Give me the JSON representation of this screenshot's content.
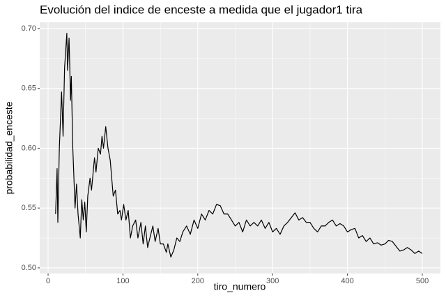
{
  "chart_data": {
    "type": "line",
    "title": "Evolución del indice de enceste a medida que el jugador1 tira",
    "x_label": "tiro_numero",
    "y_label": "probabilidad_enceste",
    "x": [
      10,
      12,
      13,
      15,
      18,
      20,
      22,
      25,
      26,
      28,
      30,
      31,
      33,
      36,
      38,
      40,
      43,
      45,
      47,
      49,
      51,
      53,
      56,
      58,
      62,
      64,
      67,
      70,
      72,
      74,
      77,
      80,
      83,
      87,
      90,
      93,
      96,
      98,
      101,
      104,
      107,
      110,
      113,
      117,
      120,
      124,
      127,
      130,
      133,
      136,
      140,
      143,
      147,
      150,
      154,
      158,
      160,
      164,
      168,
      172,
      176,
      180,
      185,
      190,
      195,
      200,
      205,
      210,
      215,
      220,
      225,
      230,
      235,
      240,
      245,
      250,
      255,
      260,
      265,
      270,
      275,
      280,
      285,
      290,
      295,
      300,
      305,
      310,
      315,
      320,
      325,
      330,
      335,
      340,
      345,
      350,
      355,
      360,
      365,
      370,
      375,
      380,
      385,
      390,
      395,
      400,
      405,
      410,
      415,
      420,
      425,
      430,
      435,
      440,
      445,
      450,
      455,
      460,
      465,
      470,
      475,
      480,
      485,
      490,
      495,
      500
    ],
    "values": [
      0.545,
      0.583,
      0.538,
      0.6,
      0.647,
      0.61,
      0.667,
      0.696,
      0.665,
      0.692,
      0.64,
      0.66,
      0.6,
      0.55,
      0.57,
      0.545,
      0.525,
      0.557,
      0.54,
      0.555,
      0.53,
      0.56,
      0.575,
      0.565,
      0.592,
      0.58,
      0.6,
      0.595,
      0.61,
      0.6,
      0.618,
      0.6,
      0.59,
      0.56,
      0.565,
      0.545,
      0.548,
      0.54,
      0.553,
      0.54,
      0.548,
      0.525,
      0.535,
      0.54,
      0.525,
      0.538,
      0.52,
      0.535,
      0.517,
      0.525,
      0.535,
      0.522,
      0.533,
      0.52,
      0.52,
      0.513,
      0.52,
      0.509,
      0.515,
      0.525,
      0.522,
      0.53,
      0.535,
      0.528,
      0.54,
      0.533,
      0.545,
      0.54,
      0.548,
      0.545,
      0.553,
      0.552,
      0.545,
      0.545,
      0.54,
      0.535,
      0.538,
      0.53,
      0.54,
      0.535,
      0.538,
      0.535,
      0.54,
      0.533,
      0.538,
      0.53,
      0.533,
      0.528,
      0.535,
      0.538,
      0.542,
      0.546,
      0.54,
      0.542,
      0.538,
      0.538,
      0.533,
      0.53,
      0.535,
      0.535,
      0.538,
      0.54,
      0.535,
      0.537,
      0.535,
      0.53,
      0.532,
      0.533,
      0.525,
      0.527,
      0.522,
      0.525,
      0.52,
      0.521,
      0.519,
      0.52,
      0.523,
      0.522,
      0.518,
      0.514,
      0.515,
      0.517,
      0.515,
      0.512,
      0.514,
      0.512
    ],
    "color": "#000000",
    "xlim": [
      -11.2,
      524.2
    ],
    "ylim": [
      0.4953,
      0.7052
    ],
    "xticks": [
      0,
      100,
      200,
      300,
      400,
      500
    ],
    "yticks": [
      {
        "value": 0.5,
        "label": "0.50"
      },
      {
        "value": 0.55,
        "label": "0.55"
      },
      {
        "value": 0.6,
        "label": "0.60"
      },
      {
        "value": 0.65,
        "label": "0.65"
      },
      {
        "value": 0.7,
        "label": "0.70"
      }
    ],
    "x_minor_grid": [
      50,
      150,
      250,
      350,
      450
    ],
    "y_minor_grid": [
      0.525,
      0.575,
      0.625,
      0.675
    ],
    "grid": true
  }
}
